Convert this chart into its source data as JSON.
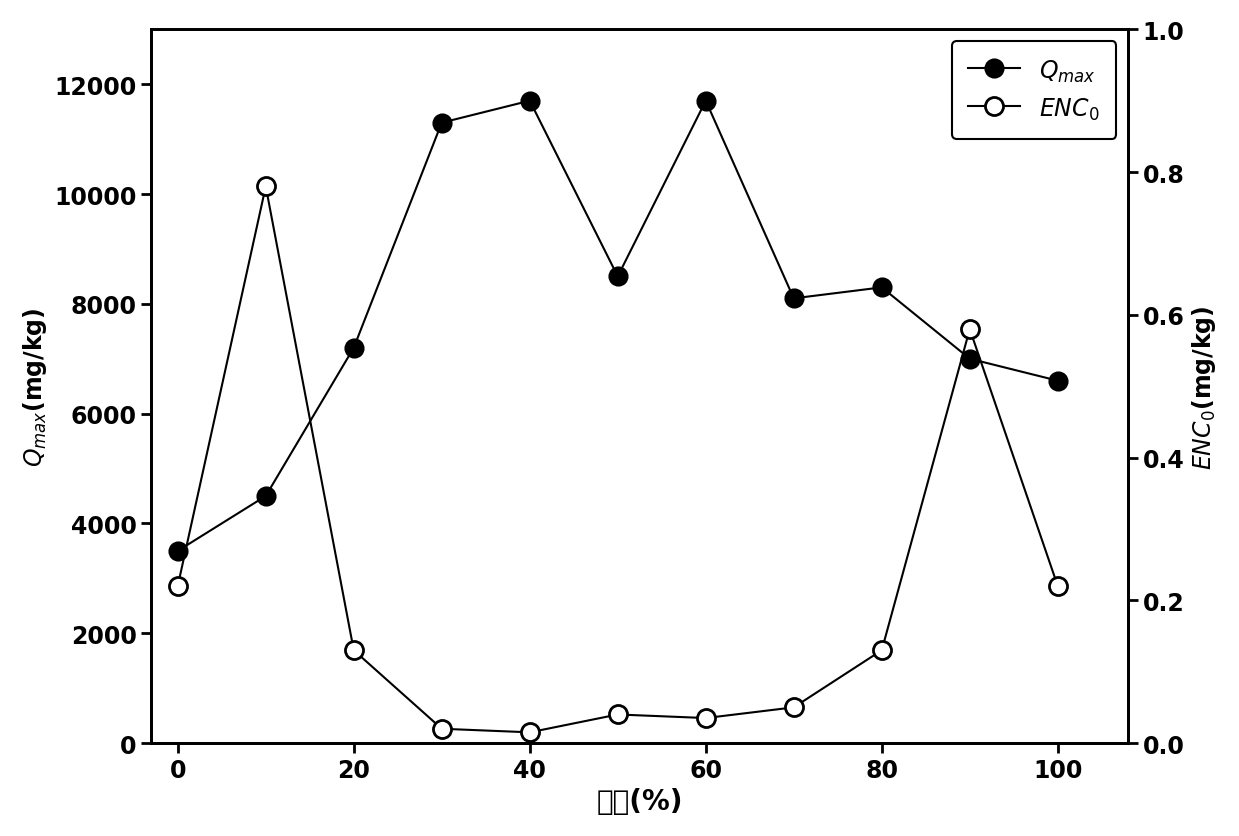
{
  "x": [
    0,
    10,
    20,
    30,
    40,
    50,
    60,
    70,
    80,
    90,
    100
  ],
  "qmax": [
    3500,
    4500,
    7200,
    11300,
    11700,
    8500,
    11700,
    8100,
    8300,
    7000,
    6600
  ],
  "enc0": [
    0.22,
    0.78,
    0.13,
    0.02,
    0.015,
    0.04,
    0.035,
    0.05,
    0.13,
    0.58,
    0.22
  ],
  "xlabel": "沨石(%)",
  "ylabel_left": "$Q_{max}$(mg/kg)",
  "ylabel_right": "$ENC_0$(mg/kg)",
  "xlim": [
    -3,
    108
  ],
  "ylim_left": [
    0,
    13000
  ],
  "ylim_right": [
    0,
    1.0
  ],
  "xticks": [
    0,
    20,
    40,
    60,
    80,
    100
  ],
  "yticks_left": [
    0,
    2000,
    4000,
    6000,
    8000,
    10000,
    12000
  ],
  "yticks_right": [
    0.0,
    0.2,
    0.4,
    0.6,
    0.8,
    1.0
  ],
  "line_color": "black",
  "markersize": 13,
  "linewidth": 1.5,
  "legend_qmax": "$Q_{max}$",
  "legend_enc0": "$ENC_0$",
  "xlabel_fontsize": 20,
  "ylabel_fontsize": 17,
  "tick_fontsize": 17,
  "legend_fontsize": 17
}
